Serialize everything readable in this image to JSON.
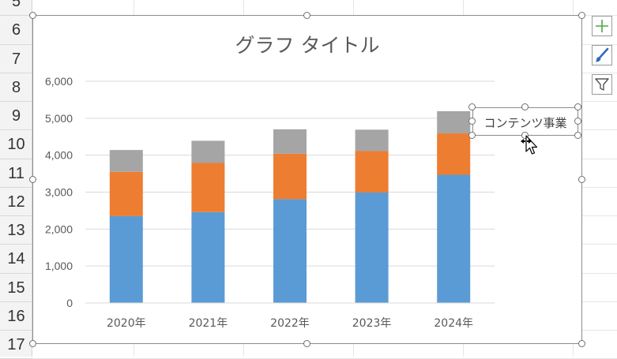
{
  "sheet": {
    "row_numbers": [
      "5",
      "6",
      "7",
      "8",
      "9",
      "10",
      "11",
      "12",
      "13",
      "14",
      "15",
      "16",
      "17"
    ]
  },
  "chart_tools": [
    {
      "name": "chart-elements",
      "icon": "plus-icon"
    },
    {
      "name": "chart-styles",
      "icon": "paintbrush-icon"
    },
    {
      "name": "chart-filters",
      "icon": "funnel-icon"
    }
  ],
  "colors": {
    "series_blue": "#5b9bd5",
    "series_orange": "#ed7d31",
    "series_gray": "#a5a5a5",
    "gridline": "#d9d9d9",
    "axis_text": "#595959",
    "tool_green": "#4ca64c",
    "tool_blue": "#2f6db5"
  },
  "data_label": {
    "text": "コンテンツ事業"
  },
  "chart_data": {
    "type": "bar",
    "stacked": true,
    "title": "グラフ タイトル",
    "categories": [
      "2020年",
      "2021年",
      "2022年",
      "2023年",
      "2024年"
    ],
    "series": [
      {
        "values": [
          2350,
          2460,
          2810,
          2990,
          3470
        ],
        "color": "#5b9bd5"
      },
      {
        "values": [
          1200,
          1330,
          1230,
          1120,
          1120
        ],
        "color": "#ed7d31"
      },
      {
        "values": [
          590,
          600,
          660,
          580,
          600
        ],
        "color": "#a5a5a5"
      }
    ],
    "ylim": [
      0,
      6000
    ],
    "yticks": [
      0,
      1000,
      2000,
      3000,
      4000,
      5000,
      6000
    ],
    "ytick_labels": [
      "0",
      "1,000",
      "2,000",
      "3,000",
      "4,000",
      "5,000",
      "6,000"
    ],
    "grid": true,
    "legend": "none"
  }
}
